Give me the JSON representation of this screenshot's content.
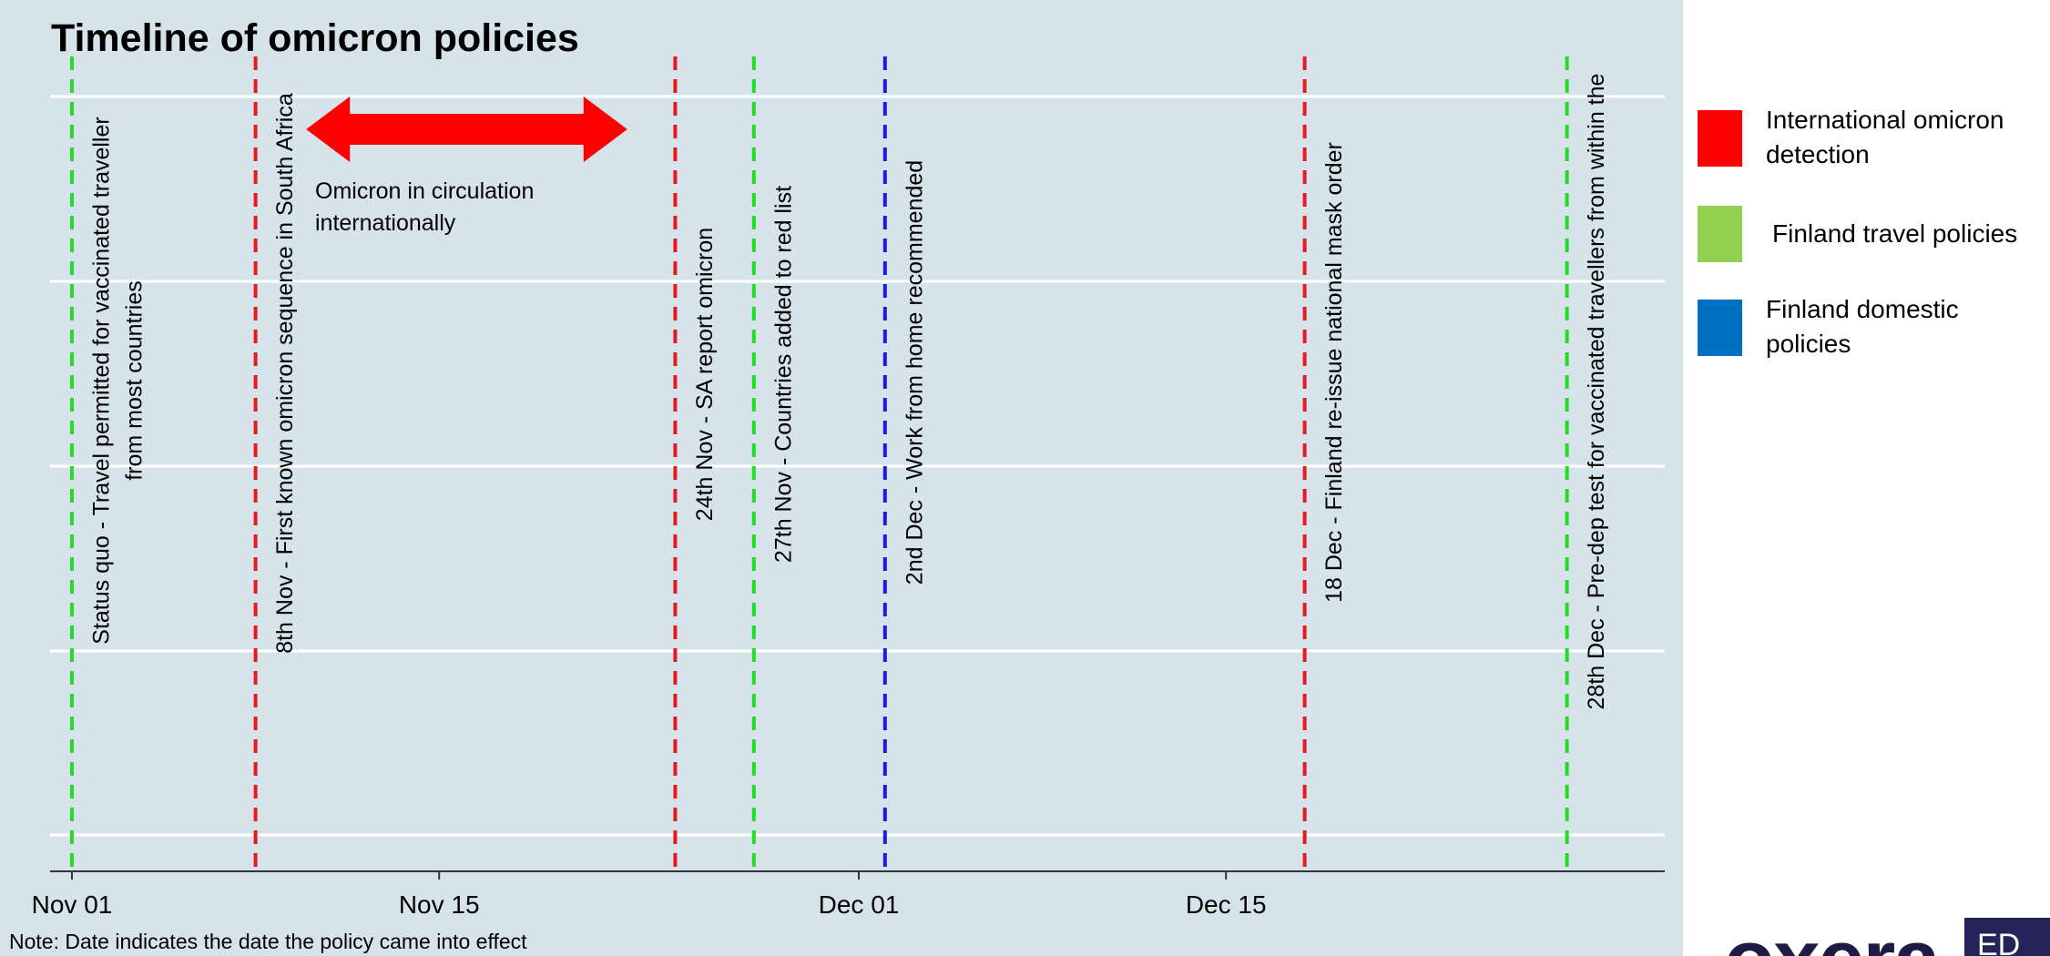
{
  "chart_data": {
    "type": "timeline",
    "title": "Timeline of omicron policies",
    "xlim": [
      "2021-10-31",
      "2022-01-01"
    ],
    "x_ticks": [
      {
        "date": "2021-11-01",
        "label": "Nov 01"
      },
      {
        "date": "2021-11-15",
        "label": "Nov 15"
      },
      {
        "date": "2021-12-01",
        "label": "Dec 01"
      },
      {
        "date": "2021-12-15",
        "label": "Dec 15"
      }
    ],
    "grid": true,
    "events": [
      {
        "date": "2021-11-01",
        "category": "Finland travel policies",
        "color": "#22dd22",
        "lines": [
          "Status quo - Travel permitted for vaccinated traveller",
          "from most countries"
        ]
      },
      {
        "date": "2021-11-08",
        "category": "International omicron detection",
        "color": "#e8191c",
        "lines": [
          "8th Nov - First known omicron sequence in South Africa"
        ]
      },
      {
        "date": "2021-11-24",
        "category": "International omicron detection",
        "color": "#e8191c",
        "lines": [
          "24th Nov - SA report omicron"
        ]
      },
      {
        "date": "2021-11-27",
        "category": "Finland travel policies",
        "color": "#22dd22",
        "lines": [
          "27th Nov - Countries added to red list"
        ]
      },
      {
        "date": "2021-12-02",
        "category": "Finland domestic policies",
        "color": "#1c1ce0",
        "lines": [
          "2nd Dec - Work from home recommended"
        ]
      },
      {
        "date": "2021-12-18",
        "category": "International omicron detection",
        "color": "#e8191c",
        "lines": [
          "18 Dec - Finland re-issue national mask order"
        ]
      },
      {
        "date": "2021-12-28",
        "category": "Finland travel policies",
        "color": "#22dd22",
        "lines": [
          "28th Dec - Pre-dep test for vaccinated travellers from within the"
        ]
      }
    ],
    "annotation": {
      "from": "2021-11-10",
      "to": "2021-11-22",
      "color": "#ff0000",
      "lines": [
        "Omicron in circulation",
        "internationally"
      ]
    },
    "legend": {
      "placement": "right",
      "items": [
        {
          "label_lines": [
            "International omicron",
            "detection"
          ],
          "color": "#ff0000"
        },
        {
          "label_lines": [
            "Finland travel policies"
          ],
          "color": "#92d050"
        },
        {
          "label_lines": [
            "Finland domestic",
            "policies"
          ],
          "color": "#0070c0"
        }
      ]
    }
  },
  "note": "Note: Date indicates the date the policy came into effect",
  "logo": {
    "wordmark": "oxera",
    "box_text": "ED"
  }
}
